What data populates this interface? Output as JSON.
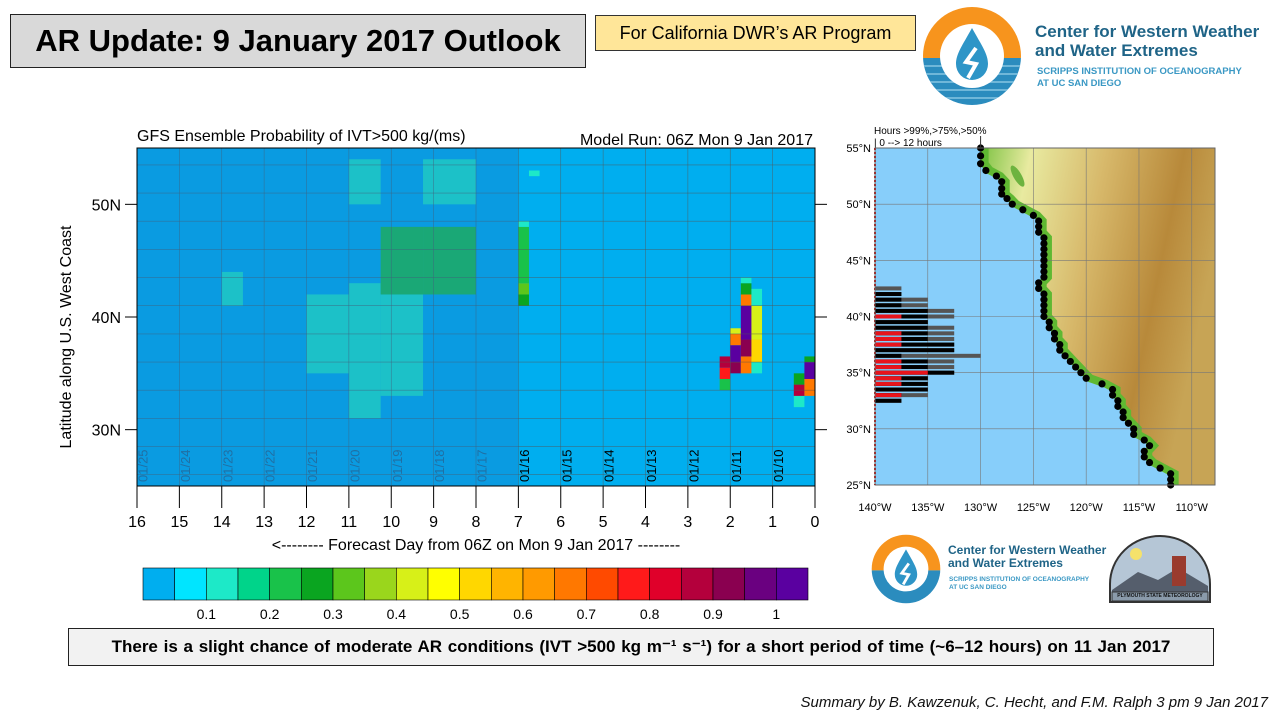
{
  "header": {
    "title": "AR Update: 9 January 2017 Outlook",
    "program": "For California DWR’s AR Program"
  },
  "logo_top": {
    "line1": "Center for Western Weather",
    "line2": "and Water Extremes",
    "line3": "SCRIPPS INSTITUTION OF OCEANOGRAPHY",
    "line4": "AT UC SAN DIEGO"
  },
  "logo_bottom": {
    "line1": "Center for Western Weather",
    "line2": "and Water Extremes",
    "line3": "SCRIPPS INSTITUTION OF OCEANOGRAPHY",
    "line4": "AT UC SAN DIEGO",
    "psu": "PLYMOUTH STATE METEOROLOGY"
  },
  "summary": "There is a slight chance of moderate AR conditions (IVT >500 kg m⁻¹ s⁻¹) for a short period of time (~6–12 hours) on 11 Jan 2017",
  "credit": "Summary by B. Kawzenuk, C. Hecht, and F.M. Ralph 3 pm 9 Jan 2017",
  "chart_data": [
    {
      "type": "heatmap",
      "title": "GFS Ensemble Probability of IVT>500 kg/(ms)",
      "subtitle": "Model Run: 06Z Mon 9 Jan 2017",
      "xlabel": "<-------- Forecast Day from 06Z on Mon 9 Jan 2017 --------",
      "ylabel": "Latitude along U.S. West Coast",
      "xlim": [
        16,
        0
      ],
      "ylim": [
        25,
        55
      ],
      "x_ticks": [
        "16",
        "15",
        "14",
        "13",
        "12",
        "11",
        "10",
        "9",
        "8",
        "7",
        "6",
        "5",
        "4",
        "3",
        "2",
        "1",
        "0"
      ],
      "y_ticks": [
        {
          "value": 50,
          "label": "50N"
        },
        {
          "value": 40,
          "label": "40N"
        },
        {
          "value": 30,
          "label": "30N"
        }
      ],
      "date_labels": [
        "01/25",
        "01/24",
        "01/23",
        "01/22",
        "01/21",
        "01/20",
        "01/19",
        "01/18",
        "01/17",
        "01/16",
        "01/15",
        "01/14",
        "01/13",
        "01/12",
        "01/11",
        "01/10"
      ],
      "shaded_beyond_day": 7,
      "colorbar": {
        "colors": [
          "#00aeef",
          "#00e5ff",
          "#1de9c8",
          "#00d48a",
          "#19c24a",
          "#0aa520",
          "#5cc61c",
          "#9ad61c",
          "#d7f018",
          "#ffff00",
          "#ffd700",
          "#ffb400",
          "#ff9a00",
          "#ff7800",
          "#ff4a00",
          "#ff1a1a",
          "#e0002a",
          "#b4003c",
          "#8a0050",
          "#6a0080",
          "#5a00a0"
        ],
        "step": 0.05,
        "labels": [
          "0.1",
          "0.2",
          "0.3",
          "0.4",
          "0.5",
          "0.6",
          "0.7",
          "0.8",
          "0.9",
          "1"
        ]
      },
      "columns": [
        {
          "day": [
            2.25,
            2.0
          ],
          "cells": [
            [
              33.5,
              34.5,
              0.2
            ],
            [
              34.5,
              35.5,
              0.75
            ],
            [
              35.5,
              36.5,
              0.85
            ]
          ]
        },
        {
          "day": [
            2.0,
            1.75
          ],
          "cells": [
            [
              35,
              36,
              0.9
            ],
            [
              36,
              37.5,
              1.0
            ],
            [
              37.5,
              38.5,
              0.7
            ],
            [
              38.5,
              39,
              0.4
            ]
          ]
        },
        {
          "day": [
            1.75,
            1.5
          ],
          "cells": [
            [
              35,
              36.5,
              0.7
            ],
            [
              36.5,
              38,
              0.95
            ],
            [
              38,
              41,
              1.02
            ],
            [
              41,
              42,
              0.7
            ],
            [
              42,
              43,
              0.3
            ],
            [
              43,
              43.5,
              0.1
            ]
          ]
        },
        {
          "day": [
            1.5,
            1.25
          ],
          "cells": [
            [
              35,
              36,
              0.1
            ],
            [
              36,
              38,
              0.5
            ],
            [
              38,
              41,
              0.4
            ],
            [
              41,
              42.5,
              0.15
            ]
          ]
        },
        {
          "day": [
            0.5,
            0.25
          ],
          "cells": [
            [
              32,
              33,
              0.1
            ],
            [
              33,
              34,
              0.85
            ],
            [
              34,
              35,
              0.3
            ]
          ]
        },
        {
          "day": [
            0.25,
            0.0
          ],
          "cells": [
            [
              33,
              34.5,
              0.7
            ],
            [
              34.5,
              36,
              1.02
            ],
            [
              36,
              36.5,
              0.3
            ]
          ]
        },
        {
          "day": [
            7.0,
            6.75
          ],
          "cells": [
            [
              41,
              42,
              0.25
            ],
            [
              42,
              43,
              0.35
            ],
            [
              43,
              48,
              0.2
            ],
            [
              48,
              48.5,
              0.1
            ]
          ]
        },
        {
          "day": [
            6.75,
            6.5
          ],
          "cells": [
            [
              52.5,
              53,
              0.1
            ]
          ]
        },
        {
          "day": [
            11,
            10.25
          ],
          "cells": [
            [
              31,
              38,
              0.1
            ],
            [
              38,
              43,
              0.15
            ],
            [
              50,
              54,
              0.1
            ]
          ]
        },
        {
          "day": [
            10.25,
            9.25
          ],
          "cells": [
            [
              33,
              42,
              0.12
            ],
            [
              42,
              48,
              0.2
            ]
          ]
        },
        {
          "day": [
            9.25,
            8
          ],
          "cells": [
            [
              42,
              48,
              0.22
            ],
            [
              50,
              54,
              0.15
            ]
          ]
        },
        {
          "day": [
            12,
            11
          ],
          "cells": [
            [
              35,
              42,
              0.1
            ]
          ]
        },
        {
          "day": [
            14,
            13.5
          ],
          "cells": [
            [
              41,
              44,
              0.1
            ]
          ]
        }
      ]
    },
    {
      "type": "map",
      "header1": "Hours >99%,>75%,>50%",
      "header2": "| 0 --> 12 hours",
      "lon_ticks": [
        "140°W",
        "135°W",
        "130°W",
        "125°W",
        "120°W",
        "115°W",
        "110°W"
      ],
      "lat_ticks": [
        "55°N",
        "50°N",
        "45°N",
        "40°N",
        "35°N",
        "30°N",
        "25°N"
      ],
      "bar_colors": {
        "p99": "#e8141c",
        "p75": "#000000",
        "p50": "#555555"
      },
      "hour_bars": [
        {
          "lat": 42.5,
          "h99": 0,
          "h75": 0,
          "h50": 3
        },
        {
          "lat": 42,
          "h99": 0,
          "h75": 3,
          "h50": 3
        },
        {
          "lat": 41.5,
          "h99": 0,
          "h75": 3,
          "h50": 6
        },
        {
          "lat": 41,
          "h99": 0,
          "h75": 3,
          "h50": 6
        },
        {
          "lat": 40.5,
          "h99": 0,
          "h75": 6,
          "h50": 9
        },
        {
          "lat": 40,
          "h99": 3,
          "h75": 6,
          "h50": 9
        },
        {
          "lat": 39.5,
          "h99": 0,
          "h75": 6,
          "h50": 6
        },
        {
          "lat": 39,
          "h99": 0,
          "h75": 6,
          "h50": 9
        },
        {
          "lat": 38.5,
          "h99": 3,
          "h75": 6,
          "h50": 9
        },
        {
          "lat": 38,
          "h99": 3,
          "h75": 6,
          "h50": 9
        },
        {
          "lat": 37.5,
          "h99": 3,
          "h75": 9,
          "h50": 9
        },
        {
          "lat": 37,
          "h99": 0,
          "h75": 9,
          "h50": 9
        },
        {
          "lat": 36.5,
          "h99": 0,
          "h75": 3,
          "h50": 12
        },
        {
          "lat": 36,
          "h99": 3,
          "h75": 6,
          "h50": 9
        },
        {
          "lat": 35.5,
          "h99": 3,
          "h75": 6,
          "h50": 9
        },
        {
          "lat": 35,
          "h99": 6,
          "h75": 9,
          "h50": 9
        },
        {
          "lat": 34.5,
          "h99": 3,
          "h75": 6,
          "h50": 6
        },
        {
          "lat": 34,
          "h99": 3,
          "h75": 6,
          "h50": 6
        },
        {
          "lat": 33.5,
          "h99": 0,
          "h75": 6,
          "h50": 6
        },
        {
          "lat": 33,
          "h99": 3,
          "h75": 3,
          "h50": 6
        },
        {
          "lat": 32.5,
          "h99": 0,
          "h75": 3,
          "h50": 3
        }
      ],
      "coast_points": [
        [
          130,
          55
        ],
        [
          130,
          54.3
        ],
        [
          130,
          53.6
        ],
        [
          129.5,
          53
        ],
        [
          128.5,
          52.5
        ],
        [
          128,
          52
        ],
        [
          128,
          51.4
        ],
        [
          128,
          50.9
        ],
        [
          127.5,
          50.5
        ],
        [
          127,
          50
        ],
        [
          126,
          49.5
        ],
        [
          125,
          49
        ],
        [
          124.5,
          48.5
        ],
        [
          124.5,
          48
        ],
        [
          124.5,
          47.5
        ],
        [
          124,
          47
        ],
        [
          124,
          46.5
        ],
        [
          124,
          46
        ],
        [
          124,
          45.5
        ],
        [
          124,
          45
        ],
        [
          124,
          44.5
        ],
        [
          124,
          44
        ],
        [
          124,
          43.5
        ],
        [
          124.5,
          43
        ],
        [
          124.5,
          42.5
        ],
        [
          124,
          42
        ],
        [
          124,
          41.5
        ],
        [
          124,
          41
        ],
        [
          124,
          40.5
        ],
        [
          124,
          40
        ],
        [
          123.5,
          39.5
        ],
        [
          123.5,
          39
        ],
        [
          123,
          38.5
        ],
        [
          123,
          38
        ],
        [
          122.5,
          37.5
        ],
        [
          122.5,
          37
        ],
        [
          122,
          36.5
        ],
        [
          121.5,
          36
        ],
        [
          121,
          35.5
        ],
        [
          120.5,
          35
        ],
        [
          120,
          34.5
        ],
        [
          118.5,
          34
        ],
        [
          117.5,
          33.5
        ],
        [
          117.5,
          33
        ],
        [
          117,
          32.5
        ],
        [
          117,
          32
        ],
        [
          116.5,
          31.5
        ],
        [
          116.5,
          31
        ],
        [
          116,
          30.5
        ],
        [
          115.5,
          30
        ],
        [
          115.5,
          29.5
        ],
        [
          114.5,
          29
        ],
        [
          114,
          28.5
        ],
        [
          114.5,
          28
        ],
        [
          114.5,
          27.5
        ],
        [
          114,
          27
        ],
        [
          113,
          26.5
        ],
        [
          112,
          26
        ],
        [
          112,
          25.5
        ],
        [
          112,
          25
        ]
      ]
    }
  ]
}
